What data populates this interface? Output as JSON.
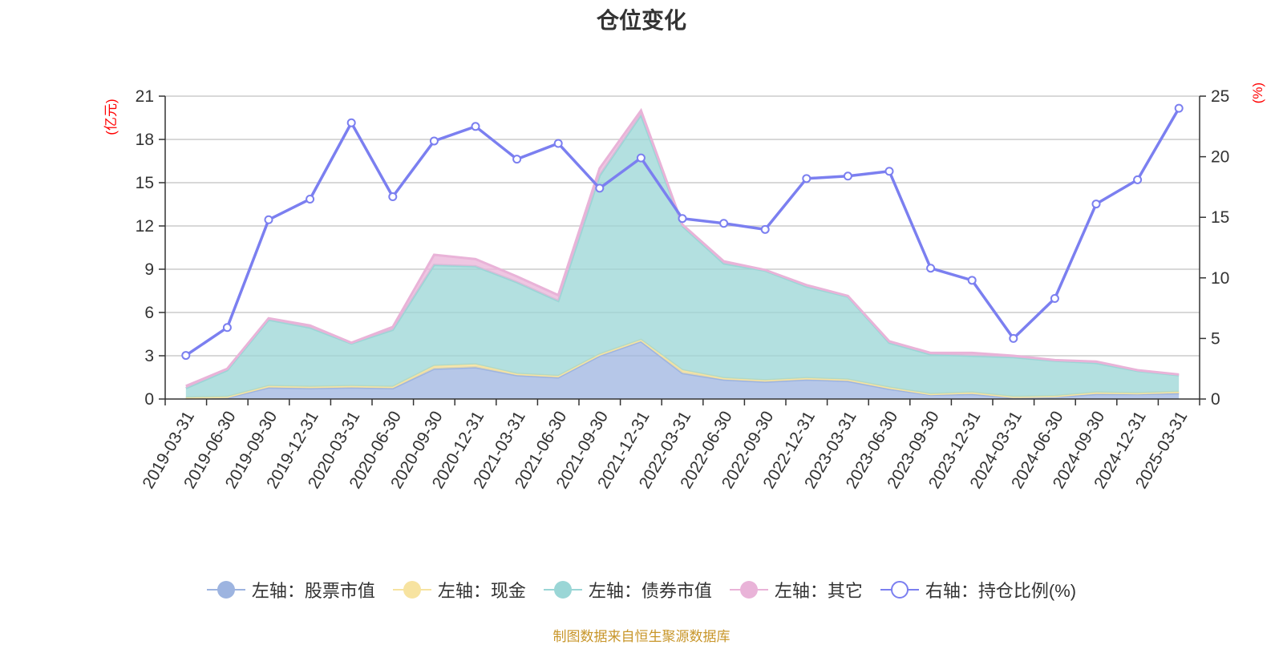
{
  "chart_data": {
    "type": "area",
    "title": "仓位变化",
    "left_axis_unit": "(亿元)",
    "right_axis_unit": "(%)",
    "left_ylim": [
      0,
      21
    ],
    "left_ticks": [
      0,
      3,
      6,
      9,
      12,
      15,
      18,
      21
    ],
    "right_ylim": [
      0,
      25
    ],
    "right_ticks": [
      0,
      5,
      10,
      15,
      20,
      25
    ],
    "grid": true,
    "legend_position": "bottom",
    "categories": [
      "2019-03-31",
      "2019-06-30",
      "2019-09-30",
      "2019-12-31",
      "2020-03-31",
      "2020-06-30",
      "2020-09-30",
      "2020-12-31",
      "2021-03-31",
      "2021-06-30",
      "2021-09-30",
      "2021-12-31",
      "2022-03-31",
      "2022-06-30",
      "2022-09-30",
      "2022-12-31",
      "2023-03-31",
      "2023-06-30",
      "2023-09-30",
      "2023-12-31",
      "2024-03-31",
      "2024-06-30",
      "2024-09-30",
      "2024-12-31",
      "2025-03-31"
    ],
    "series": [
      {
        "name": "左轴：股票市值",
        "axis": "left",
        "kind": "stacked-area",
        "color": "#9db4e0",
        "values": [
          0.05,
          0.1,
          0.8,
          0.75,
          0.8,
          0.75,
          2.1,
          2.2,
          1.65,
          1.5,
          3.0,
          4.0,
          1.8,
          1.35,
          1.2,
          1.35,
          1.25,
          0.7,
          0.3,
          0.35,
          0.1,
          0.15,
          0.35,
          0.35,
          0.4
        ]
      },
      {
        "name": "左轴：现金",
        "axis": "left",
        "kind": "stacked-area",
        "color": "#f7e3a0",
        "values": [
          0.05,
          0.05,
          0.1,
          0.1,
          0.1,
          0.1,
          0.2,
          0.2,
          0.1,
          0.1,
          0.1,
          0.1,
          0.2,
          0.1,
          0.1,
          0.1,
          0.1,
          0.1,
          0.05,
          0.1,
          0.05,
          0.05,
          0.1,
          0.05,
          0.1
        ]
      },
      {
        "name": "左轴：债券市值",
        "axis": "left",
        "kind": "stacked-area",
        "color": "#9ad6d6",
        "values": [
          0.65,
          1.85,
          4.6,
          4.1,
          2.95,
          3.95,
          7.0,
          6.8,
          6.35,
          5.2,
          12.4,
          15.6,
          10.0,
          7.95,
          7.6,
          6.35,
          5.75,
          3.1,
          2.75,
          2.55,
          2.75,
          2.45,
          2.05,
          1.55,
          1.15
        ]
      },
      {
        "name": "左轴：其它",
        "axis": "left",
        "kind": "stacked-area",
        "color": "#e9b3d8",
        "values": [
          0.15,
          0.1,
          0.1,
          0.15,
          0.05,
          0.2,
          0.7,
          0.5,
          0.4,
          0.4,
          0.5,
          0.3,
          0.1,
          0.15,
          0.05,
          0.1,
          0.05,
          0.1,
          0.1,
          0.2,
          0.1,
          0.05,
          0.1,
          0.05,
          0.05
        ]
      },
      {
        "name": "右轴：持仓比例(%)",
        "axis": "right",
        "kind": "line",
        "color": "#7b7ff0",
        "values": [
          3.6,
          5.9,
          14.8,
          16.5,
          22.8,
          16.7,
          21.3,
          22.5,
          19.8,
          21.1,
          17.4,
          19.9,
          14.9,
          14.5,
          14.0,
          18.2,
          18.4,
          18.8,
          10.8,
          9.8,
          5.0,
          8.3,
          16.1,
          18.1,
          24.0
        ]
      }
    ]
  },
  "source_note": "制图数据来自恒生聚源数据库"
}
